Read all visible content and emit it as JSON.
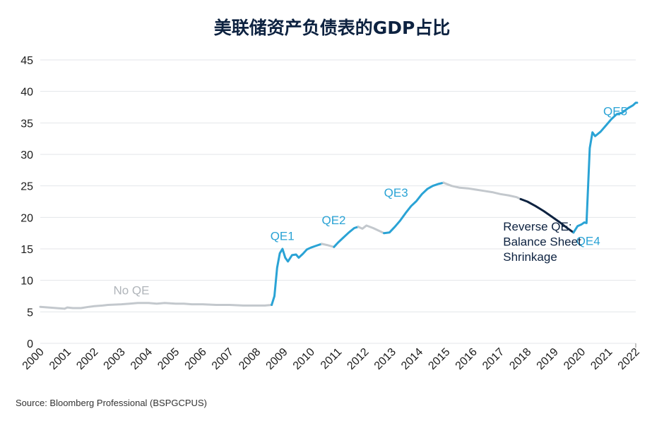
{
  "chart_data": {
    "type": "line",
    "title": "美联储资产负债表的GDP占比",
    "source": "Source: Bloomberg Professional (BSPGCPUS)",
    "ylim": [
      0,
      45
    ],
    "yticks": [
      0,
      5,
      10,
      15,
      20,
      25,
      30,
      35,
      40,
      45
    ],
    "xlim": [
      2000,
      2022
    ],
    "xticks": [
      "2000",
      "2001",
      "2002",
      "2003",
      "2004",
      "2005",
      "2006",
      "2007",
      "2008",
      "2009",
      "2010",
      "2011",
      "2012",
      "2013",
      "2014",
      "2015",
      "2016",
      "2017",
      "2018",
      "2019",
      "2020",
      "2021",
      "2022"
    ],
    "grid": "horizontal",
    "colors": {
      "no_qe": "#c3c8cd",
      "qe": "#2aa3d5",
      "reverse": "#0d2240",
      "grid": "#e3e6ea"
    },
    "segments": [
      {
        "phase": "no_qe",
        "points": [
          [
            2000.0,
            5.8
          ],
          [
            2000.3,
            5.7
          ],
          [
            2000.6,
            5.6
          ],
          [
            2000.9,
            5.5
          ],
          [
            2001.0,
            5.7
          ],
          [
            2001.2,
            5.6
          ],
          [
            2001.5,
            5.6
          ],
          [
            2001.8,
            5.8
          ],
          [
            2002.0,
            5.9
          ],
          [
            2002.3,
            6.0
          ],
          [
            2002.5,
            6.1
          ],
          [
            2003.0,
            6.2
          ],
          [
            2003.3,
            6.3
          ],
          [
            2003.6,
            6.4
          ],
          [
            2004.0,
            6.4
          ],
          [
            2004.3,
            6.3
          ],
          [
            2004.6,
            6.4
          ],
          [
            2005.0,
            6.3
          ],
          [
            2005.3,
            6.3
          ],
          [
            2005.6,
            6.2
          ],
          [
            2006.0,
            6.2
          ],
          [
            2006.5,
            6.1
          ],
          [
            2007.0,
            6.1
          ],
          [
            2007.5,
            6.0
          ],
          [
            2008.0,
            6.0
          ],
          [
            2008.3,
            6.0
          ],
          [
            2008.55,
            6.1
          ]
        ]
      },
      {
        "phase": "qe",
        "label": "QE1",
        "points": [
          [
            2008.55,
            6.1
          ],
          [
            2008.65,
            7.5
          ],
          [
            2008.75,
            12.0
          ],
          [
            2008.85,
            14.3
          ],
          [
            2008.95,
            15.0
          ],
          [
            2009.05,
            13.6
          ],
          [
            2009.15,
            13.0
          ],
          [
            2009.3,
            14.0
          ],
          [
            2009.45,
            14.1
          ],
          [
            2009.55,
            13.6
          ],
          [
            2009.7,
            14.2
          ],
          [
            2009.85,
            14.9
          ],
          [
            2010.0,
            15.2
          ],
          [
            2010.2,
            15.5
          ],
          [
            2010.4,
            15.8
          ]
        ]
      },
      {
        "phase": "no_qe",
        "points": [
          [
            2010.4,
            15.8
          ],
          [
            2010.6,
            15.6
          ],
          [
            2010.85,
            15.3
          ]
        ]
      },
      {
        "phase": "qe",
        "label": "QE2",
        "points": [
          [
            2010.85,
            15.3
          ],
          [
            2011.0,
            16.0
          ],
          [
            2011.2,
            16.8
          ],
          [
            2011.4,
            17.6
          ],
          [
            2011.6,
            18.3
          ],
          [
            2011.75,
            18.5
          ]
        ]
      },
      {
        "phase": "no_qe",
        "points": [
          [
            2011.75,
            18.5
          ],
          [
            2011.9,
            18.2
          ],
          [
            2012.05,
            18.7
          ],
          [
            2012.3,
            18.3
          ],
          [
            2012.5,
            17.9
          ],
          [
            2012.7,
            17.5
          ]
        ]
      },
      {
        "phase": "qe",
        "label": "QE3",
        "points": [
          [
            2012.7,
            17.5
          ],
          [
            2012.9,
            17.6
          ],
          [
            2013.1,
            18.5
          ],
          [
            2013.3,
            19.5
          ],
          [
            2013.5,
            20.7
          ],
          [
            2013.7,
            21.8
          ],
          [
            2013.9,
            22.6
          ],
          [
            2014.1,
            23.7
          ],
          [
            2014.3,
            24.5
          ],
          [
            2014.5,
            25.0
          ],
          [
            2014.7,
            25.3
          ],
          [
            2014.9,
            25.5
          ]
        ]
      },
      {
        "phase": "no_qe",
        "points": [
          [
            2014.9,
            25.5
          ],
          [
            2015.2,
            25.0
          ],
          [
            2015.5,
            24.7
          ],
          [
            2015.8,
            24.6
          ],
          [
            2016.1,
            24.4
          ],
          [
            2016.4,
            24.2
          ],
          [
            2016.7,
            24.0
          ],
          [
            2017.0,
            23.7
          ],
          [
            2017.3,
            23.5
          ],
          [
            2017.6,
            23.2
          ],
          [
            2017.75,
            22.9
          ]
        ]
      },
      {
        "phase": "reverse",
        "label": "Reverse QE: Balance Sheet Shrinkage",
        "points": [
          [
            2017.75,
            22.9
          ],
          [
            2018.0,
            22.5
          ],
          [
            2018.3,
            21.8
          ],
          [
            2018.6,
            21.0
          ],
          [
            2018.9,
            20.1
          ],
          [
            2019.2,
            19.2
          ],
          [
            2019.5,
            18.2
          ],
          [
            2019.7,
            17.6
          ]
        ]
      },
      {
        "phase": "qe",
        "label": "QE4",
        "points": [
          [
            2019.7,
            17.6
          ],
          [
            2019.85,
            18.6
          ],
          [
            2020.0,
            18.9
          ],
          [
            2020.1,
            19.2
          ],
          [
            2020.18,
            19.1
          ],
          [
            2020.3,
            31.0
          ],
          [
            2020.4,
            33.5
          ],
          [
            2020.5,
            32.9
          ],
          [
            2020.7,
            33.6
          ],
          [
            2020.9,
            34.6
          ],
          [
            2021.1,
            35.6
          ],
          [
            2021.3,
            36.4
          ],
          [
            2021.5,
            36.6
          ],
          [
            2021.7,
            37.3
          ],
          [
            2021.9,
            37.8
          ],
          [
            2022.0,
            38.2
          ],
          [
            2022.05,
            38.2
          ]
        ]
      }
    ],
    "annotations": [
      {
        "text": "No QE",
        "color": "#b0b5ba",
        "at": [
          2002.7,
          7.8
        ]
      },
      {
        "text": "QE1",
        "color": "#2aa3d5",
        "at": [
          2008.5,
          16.4
        ]
      },
      {
        "text": "QE2",
        "color": "#2aa3d5",
        "at": [
          2010.4,
          18.9
        ]
      },
      {
        "text": "QE3",
        "color": "#2aa3d5",
        "at": [
          2012.7,
          23.3
        ]
      },
      {
        "text": "QE4",
        "color": "#2aa3d5",
        "at": [
          2019.8,
          15.6
        ]
      },
      {
        "text": "QE5",
        "color": "#2aa3d5",
        "at": [
          2020.8,
          36.2
        ]
      },
      {
        "text": "Reverse QE:",
        "color": "#0d2240",
        "at": [
          2017.1,
          17.9
        ]
      },
      {
        "text": "Balance Sheet",
        "color": "#0d2240",
        "at": [
          2017.1,
          15.5
        ]
      },
      {
        "text": "Shrinkage",
        "color": "#0d2240",
        "at": [
          2017.1,
          13.1
        ]
      }
    ]
  }
}
